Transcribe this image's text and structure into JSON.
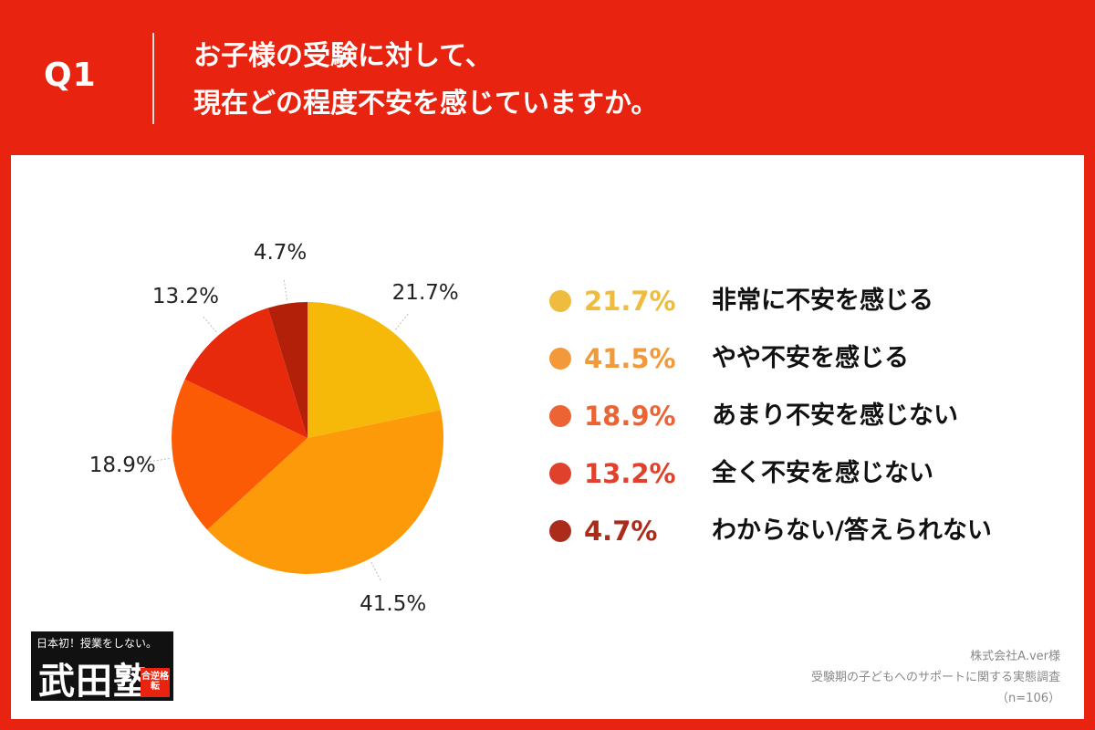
{
  "header": {
    "question_no": "Q1",
    "question_line1": "お子様の受験に対して、",
    "question_line2": "現在どの程度不安を感じていますか。"
  },
  "chart_data": {
    "type": "pie",
    "title": "お子様の受験に対して、現在どの程度不安を感じていますか。",
    "slices": [
      {
        "label": "非常に不安を感じる",
        "value": 21.7,
        "display": "21.7%",
        "color": "#f6b90a",
        "legend_color": "#f0bc3f"
      },
      {
        "label": "やや不安を感じる",
        "value": 41.5,
        "display": "41.5%",
        "color": "#fc9a09",
        "legend_color": "#f29a39"
      },
      {
        "label": "あまり不安を感じない",
        "value": 18.9,
        "display": "18.9%",
        "color": "#fa5b04",
        "legend_color": "#ec6334"
      },
      {
        "label": "全く不安を感じない",
        "value": 13.2,
        "display": "13.2%",
        "color": "#e7290c",
        "legend_color": "#e0412c"
      },
      {
        "label": "わからない/答えられない",
        "value": 4.7,
        "display": "4.7%",
        "color": "#b3200a",
        "legend_color": "#ab2c1b"
      }
    ],
    "start": "12 o'clock",
    "direction": "clockwise",
    "legend_placement": "right"
  },
  "footer": {
    "source_line1": "株式会社A.ver様",
    "source_line2": "受験期の子どもへのサポートに関する実態調査",
    "source_line3": "（n=106）"
  },
  "logo": {
    "tagline": "日本初！授業をしない。",
    "name": "武田塾",
    "badge": "合逆格転"
  }
}
